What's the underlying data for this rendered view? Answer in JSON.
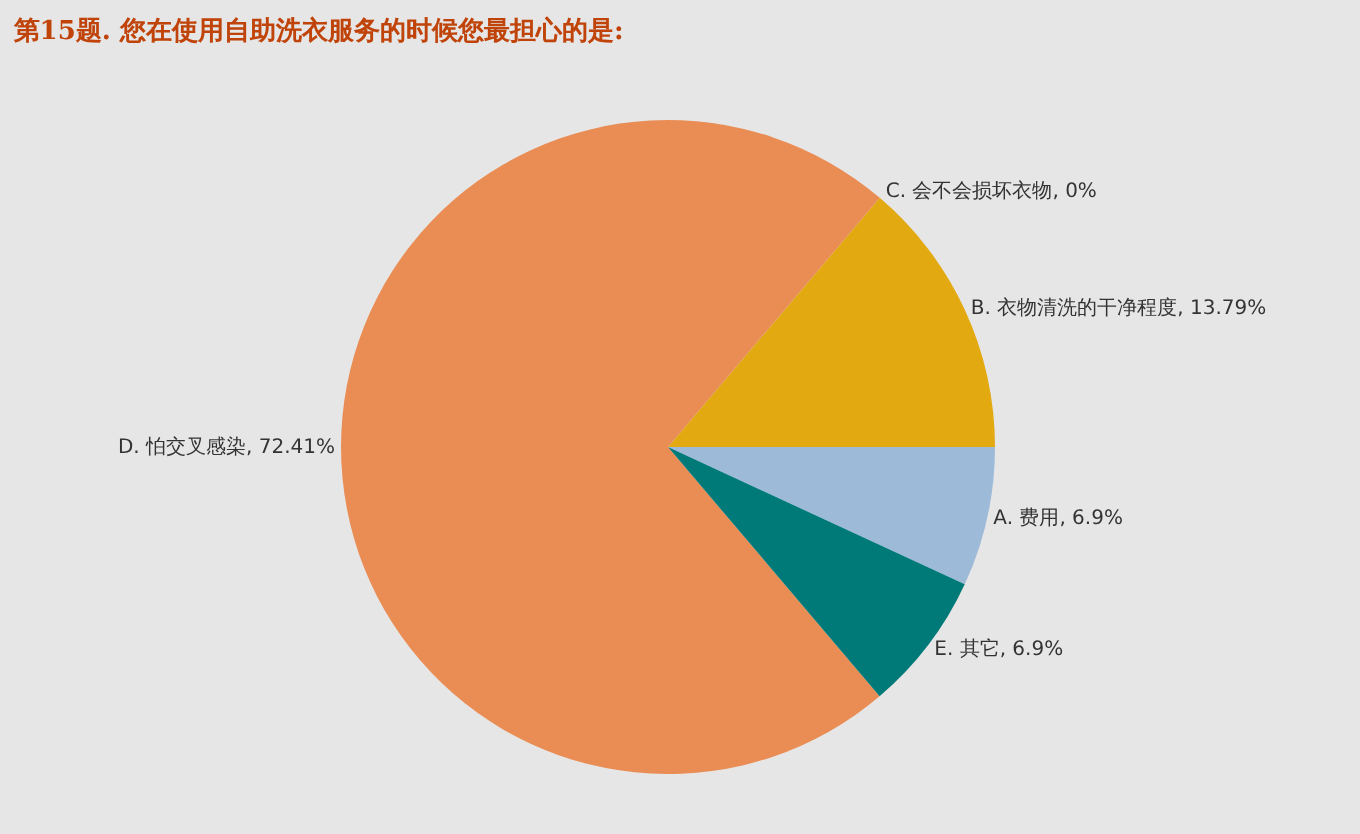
{
  "chart_data": {
    "type": "pie",
    "title": "第15题. 您在使用自助洗衣服务的时候您最担心的是:",
    "categories": [
      "A. 费用",
      "B. 衣物清洗的干净程度",
      "C. 会不会损坏衣物",
      "D. 怕交叉感染",
      "E. 其它"
    ],
    "values": [
      6.9,
      13.79,
      0,
      72.41,
      6.9
    ],
    "value_labels": [
      ", 6.9%",
      ", 13.79%",
      ", 0%",
      ", 72.41%",
      ", 6.9%"
    ],
    "colors": [
      "#9dbbd9",
      "#e2aa10",
      "#8fb04a",
      "#ea8d55",
      "#007a78"
    ],
    "legend": false
  }
}
